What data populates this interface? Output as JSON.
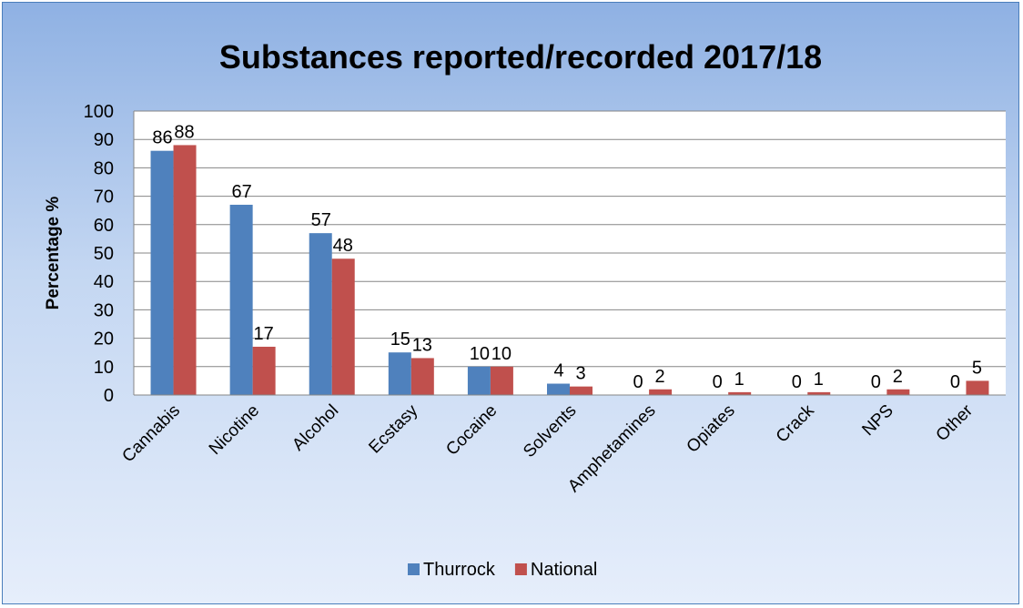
{
  "chart_data": {
    "type": "bar",
    "title": "Substances reported/recorded 2017/18",
    "ylabel": "Percentage %",
    "xlabel": "",
    "ylim": [
      0,
      100
    ],
    "yticks": [
      0,
      10,
      20,
      30,
      40,
      50,
      60,
      70,
      80,
      90,
      100
    ],
    "grid": true,
    "legend_position": "bottom",
    "categories": [
      "Cannabis",
      "Nicotine",
      "Alcohol",
      "Ecstasy",
      "Cocaine",
      "Solvents",
      "Amphetamines",
      "Opiates",
      "Crack",
      "NPS",
      "Other"
    ],
    "series": [
      {
        "name": "Thurrock",
        "color": "#4f81bd",
        "values": [
          86,
          67,
          57,
          15,
          10,
          4,
          0,
          0,
          0,
          0,
          0
        ]
      },
      {
        "name": "National",
        "color": "#c0504d",
        "values": [
          88,
          17,
          48,
          13,
          10,
          3,
          2,
          1,
          1,
          2,
          5
        ]
      }
    ]
  }
}
